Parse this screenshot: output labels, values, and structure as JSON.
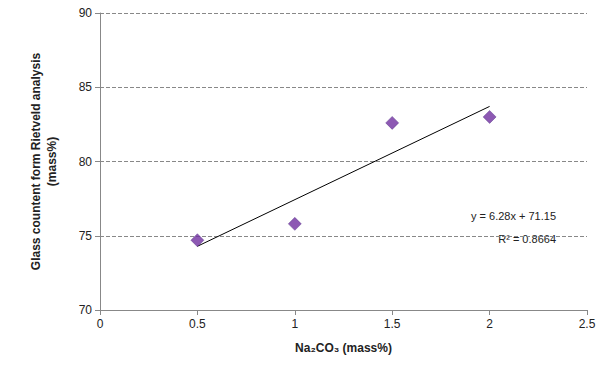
{
  "chart_data": {
    "type": "scatter",
    "x_label": "Na₂CO₃ (mass%)",
    "y_label": "Glass countent form Rietveld analysis\n(mass%)",
    "x": [
      0.5,
      1,
      1.5,
      2
    ],
    "values": [
      74.7,
      75.8,
      82.6,
      83.0
    ],
    "color": "#7030a0",
    "marker": "diamond",
    "trendline": {
      "x": [
        0.5,
        2
      ],
      "values": [
        74.29,
        83.71
      ],
      "color": "#000000"
    },
    "annotations": [
      "y = 6.28x + 71.15",
      "R² = 0.8664"
    ],
    "xlim": [
      0,
      2.5
    ],
    "xticks": [
      0,
      0.5,
      1,
      1.5,
      2,
      2.5
    ],
    "ylim": [
      70,
      90
    ],
    "yticks": [
      70,
      75,
      80,
      85,
      90
    ],
    "grid": true
  }
}
